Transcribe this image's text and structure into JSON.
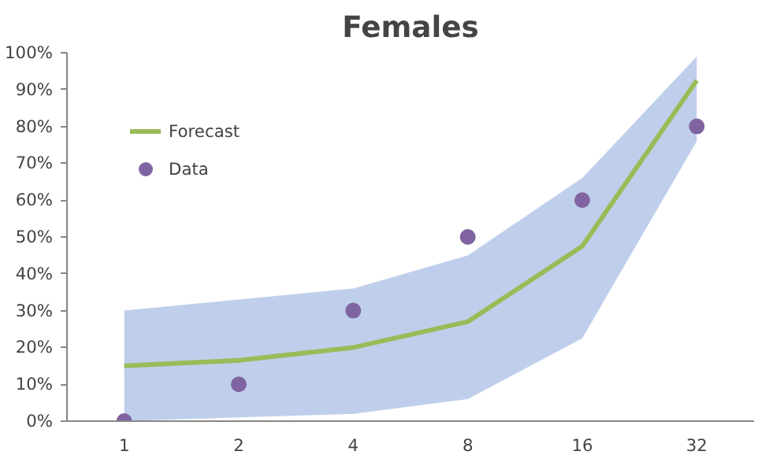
{
  "chart_data": {
    "type": "line",
    "title": "Females",
    "categories": [
      "1",
      "2",
      "4",
      "8",
      "16",
      "32"
    ],
    "series": [
      {
        "name": "Forecast",
        "color": "#9bbb59",
        "values": [
          15,
          16.5,
          20,
          27,
          47.5,
          92.5
        ],
        "lower": [
          0,
          1,
          2,
          6,
          22.5,
          76
        ],
        "upper": [
          30,
          33,
          36,
          45,
          66,
          99
        ]
      },
      {
        "name": "Data",
        "type": "scatter",
        "color": "#8064a2",
        "marker": "circle",
        "values": [
          0,
          10,
          30,
          50,
          60,
          80
        ]
      }
    ],
    "ylim": [
      0,
      100
    ],
    "yticks": [
      {
        "value": 0,
        "label": "0%"
      },
      {
        "value": 10,
        "label": "10%"
      },
      {
        "value": 20,
        "label": "20%"
      },
      {
        "value": 30,
        "label": "30%"
      },
      {
        "value": 40,
        "label": "40%"
      },
      {
        "value": 50,
        "label": "50%"
      },
      {
        "value": 60,
        "label": "60%"
      },
      {
        "value": 70,
        "label": "70%"
      },
      {
        "value": 80,
        "label": "80%"
      },
      {
        "value": 90,
        "label": "90%"
      },
      {
        "value": 100,
        "label": "100%"
      }
    ],
    "grid": false,
    "legend": "top left"
  }
}
